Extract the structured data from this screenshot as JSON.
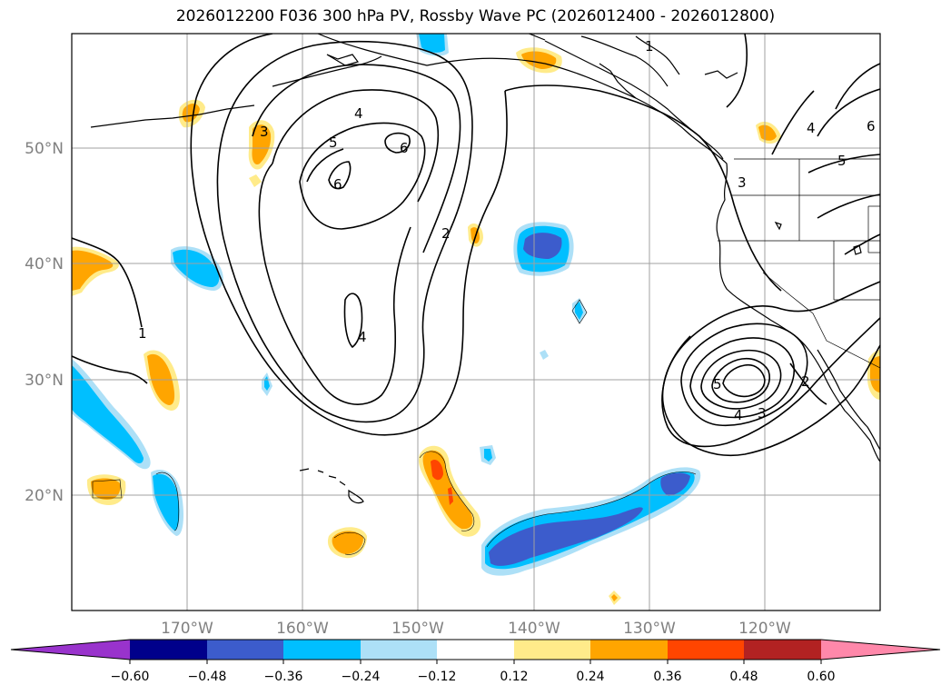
{
  "title": "2026012200 F036 300 hPa PV, Rossby Wave PC (2026012400 - 2026012800)",
  "lat_labels": [
    "50°N",
    "40°N",
    "30°N",
    "20°N"
  ],
  "lon_labels": [
    "170°W",
    "160°W",
    "150°W",
    "140°W",
    "130°W",
    "120°W"
  ],
  "contour_labels": [
    "1",
    "2",
    "3",
    "4",
    "5",
    "6"
  ],
  "colorbar": {
    "ticks": [
      "−0.60",
      "−0.48",
      "−0.36",
      "−0.24",
      "−0.12",
      "0.12",
      "0.24",
      "0.36",
      "0.48",
      "0.60"
    ],
    "colors": [
      "#9933cc",
      "#00008b",
      "#3c5ccc",
      "#00bfff",
      "#ade0f7",
      "#ffffff",
      "#ffeb8a",
      "#ffa500",
      "#ff4500",
      "#b22222",
      "#ff88aa"
    ]
  },
  "colors": {
    "strong_negative": "#3c5ccc",
    "negative": "#00bfff",
    "weak_negative": "#ade0f7",
    "weak_positive": "#ffeb8a",
    "positive": "#ffa500",
    "strong_positive": "#ff4500"
  }
}
